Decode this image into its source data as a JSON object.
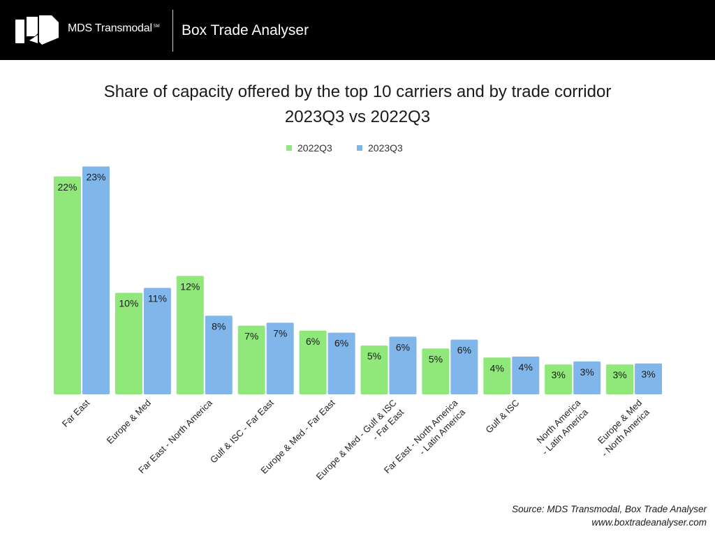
{
  "header": {
    "brand": "MDS Transmodal",
    "brand_mark": "SM",
    "product": "Box Trade Analyser"
  },
  "source": {
    "line1": "Source: MDS Transmodal, Box Trade Analyser",
    "line2": "www.boxtradeanalyser.com"
  },
  "chart_data": {
    "type": "bar",
    "title": "Share of capacity offered by the top 10 carriers and by trade corridor",
    "subtitle": "2023Q3 vs 2022Q3",
    "categories": [
      [
        "Far East"
      ],
      [
        "Europe & Med"
      ],
      [
        "Far East - North America"
      ],
      [
        "Gulf & ISC - Far East"
      ],
      [
        "Europe & Med - Far East"
      ],
      [
        "Europe & Med - Gulf & ISC",
        "- Far East"
      ],
      [
        "Far East - North America",
        "- Latin America"
      ],
      [
        "Gulf & ISC"
      ],
      [
        "North America",
        "- Latin America"
      ],
      [
        "Europe & Med",
        "- North America"
      ]
    ],
    "series": [
      {
        "name": "2022Q3",
        "color": "#90e87a",
        "values": [
          22,
          10,
          12,
          7,
          6,
          5,
          5,
          4,
          3,
          3
        ]
      },
      {
        "name": "2023Q3",
        "color": "#80b6ea",
        "values": [
          23,
          11,
          8,
          7,
          6,
          6,
          6,
          4,
          3,
          3
        ]
      }
    ],
    "bar_heights": [
      [
        21.9,
        10.2,
        11.9,
        6.9,
        6.4,
        4.9,
        4.6,
        3.7,
        3.0,
        3.0
      ],
      [
        22.9,
        10.7,
        7.9,
        7.2,
        6.2,
        5.8,
        5.5,
        3.8,
        3.3,
        3.1
      ]
    ],
    "value_suffix": "%",
    "legend_position": "top-center",
    "ylim": [
      0,
      23.5
    ],
    "grid": false
  }
}
